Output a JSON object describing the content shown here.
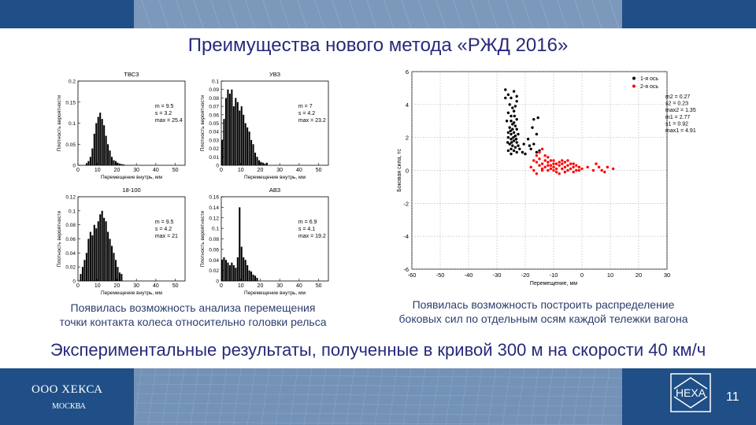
{
  "slide": {
    "title": "Преимущества нового метода «РЖД 2016»",
    "caption_left": [
      "Появилась возможность анализа перемещения",
      "точки контакта колеса относительно головки рельса"
    ],
    "caption_right": [
      "Появилась возможность построить распределение",
      "боковых сил по отдельным осям каждой тележки вагона"
    ],
    "conclusion": "Экспериментальные результаты, полученные в кривой 300 м на скорости 40 км/ч",
    "company": "ООО ХЕКСА",
    "city": "МОСКВА",
    "logo": "HEXA",
    "page_number": "11"
  },
  "colors": {
    "band": "#1f4f86",
    "title": "#27297a",
    "axle1": "#000000",
    "axle2": "#ff0000"
  },
  "chart_data": [
    {
      "type": "bar",
      "title": "ТВСЗ",
      "xlabel": "Перемещение внутрь, мм",
      "ylabel": "Плотность вероятности",
      "xlim": [
        0,
        55
      ],
      "ylim": [
        0,
        0.2
      ],
      "xticks": [
        0,
        10,
        20,
        30,
        40,
        50
      ],
      "yticks": [
        0,
        0.05,
        0.1,
        0.15,
        0.2
      ],
      "bin_width": 1,
      "x_start": 4,
      "values": [
        0.005,
        0.01,
        0.02,
        0.04,
        0.075,
        0.1,
        0.115,
        0.125,
        0.11,
        0.095,
        0.07,
        0.05,
        0.035,
        0.02,
        0.012,
        0.01,
        0.006,
        0.004,
        0.003,
        0.002
      ],
      "annotations": [
        "m = 9.5",
        "s = 3.2",
        "max = 25.4"
      ]
    },
    {
      "type": "bar",
      "title": "УВЗ",
      "xlabel": "Перемещение внутрь, мм",
      "ylabel": "Плотность вероятности",
      "xlim": [
        0,
        55
      ],
      "ylim": [
        0,
        0.1
      ],
      "xticks": [
        0,
        10,
        20,
        30,
        40,
        50
      ],
      "yticks": [
        0,
        0.01,
        0.02,
        0.03,
        0.04,
        0.05,
        0.06,
        0.07,
        0.08,
        0.09,
        0.1
      ],
      "bin_width": 1,
      "x_start": 0,
      "values": [
        0.03,
        0.055,
        0.08,
        0.09,
        0.085,
        0.09,
        0.07,
        0.08,
        0.075,
        0.065,
        0.07,
        0.06,
        0.05,
        0.045,
        0.04,
        0.03,
        0.025,
        0.015,
        0.01,
        0.006,
        0.004,
        0.003,
        0.002,
        0.003
      ],
      "annotations": [
        "m = 7",
        "s = 4.2",
        "max = 23.2"
      ]
    },
    {
      "type": "bar",
      "title": "18-100",
      "xlabel": "Перемещение внутрь, мм",
      "ylabel": "Плотность вероятности",
      "xlim": [
        0,
        55
      ],
      "ylim": [
        0,
        0.12
      ],
      "xticks": [
        0,
        10,
        20,
        30,
        40,
        50
      ],
      "yticks": [
        0,
        0.02,
        0.04,
        0.06,
        0.08,
        0.1,
        0.12
      ],
      "bin_width": 1,
      "x_start": 1,
      "values": [
        0.01,
        0.02,
        0.03,
        0.04,
        0.06,
        0.07,
        0.065,
        0.08,
        0.075,
        0.085,
        0.095,
        0.1,
        0.09,
        0.085,
        0.07,
        0.06,
        0.05,
        0.04,
        0.03,
        0.02,
        0.012,
        0.01
      ],
      "annotations": [
        "m = 9.5",
        "s = 4.2",
        "max = 21"
      ]
    },
    {
      "type": "bar",
      "title": "АВЗ",
      "xlabel": "Перемещение внутрь, мм",
      "ylabel": "Плотность вероятности",
      "xlim": [
        0,
        55
      ],
      "ylim": [
        0,
        0.16
      ],
      "xticks": [
        0,
        10,
        20,
        30,
        40,
        50
      ],
      "yticks": [
        0,
        0.02,
        0.04,
        0.06,
        0.08,
        0.1,
        0.12,
        0.14,
        0.16
      ],
      "bin_width": 1,
      "x_start": 0,
      "values": [
        0.04,
        0.045,
        0.04,
        0.035,
        0.03,
        0.035,
        0.03,
        0.025,
        0.045,
        0.14,
        0.065,
        0.045,
        0.04,
        0.03,
        0.02,
        0.018,
        0.012,
        0.01,
        0.006
      ],
      "annotations": [
        "m = 6.9",
        "s = 4.1",
        "max = 19.2"
      ]
    },
    {
      "type": "scatter",
      "xlabel": "Перемещение, мм",
      "ylabel": "Боковая сила, тс",
      "xlim": [
        -60,
        30
      ],
      "ylim": [
        -6,
        6
      ],
      "xticks": [
        -60,
        -50,
        -40,
        -30,
        -20,
        -10,
        0,
        10,
        20,
        30
      ],
      "yticks": [
        -6,
        -4,
        -2,
        0,
        2,
        4,
        6
      ],
      "grid": true,
      "legend": "top-right",
      "annotations": [
        "m2 = 0.27",
        "s2 = 0.23",
        "max2 = 1.35",
        "m1 = 2.77",
        "s1 = 0.92",
        "max1 = 4.91"
      ],
      "series": [
        {
          "name": "1-я ось",
          "color": "#000000",
          "points": [
            [
              -27,
              4.9
            ],
            [
              -26,
              4.6
            ],
            [
              -25,
              4.4
            ],
            [
              -24,
              4.8
            ],
            [
              -23,
              4.2
            ],
            [
              -25.5,
              4.0
            ],
            [
              -24.5,
              3.8
            ],
            [
              -23.5,
              3.9
            ],
            [
              -26,
              3.5
            ],
            [
              -25,
              3.3
            ],
            [
              -24,
              3.6
            ],
            [
              -23,
              3.1
            ],
            [
              -26.5,
              3.0
            ],
            [
              -25,
              3.0
            ],
            [
              -24,
              2.9
            ],
            [
              -23.5,
              2.7
            ],
            [
              -25.5,
              2.6
            ],
            [
              -24.5,
              2.5
            ],
            [
              -23,
              2.5
            ],
            [
              -26,
              2.3
            ],
            [
              -25,
              2.2
            ],
            [
              -24,
              2.3
            ],
            [
              -23.5,
              2.1
            ],
            [
              -22.5,
              2.2
            ],
            [
              -26,
              2.0
            ],
            [
              -25,
              1.9
            ],
            [
              -24,
              1.8
            ],
            [
              -23,
              1.7
            ],
            [
              -25.5,
              1.6
            ],
            [
              -24.5,
              1.5
            ],
            [
              -23.5,
              1.4
            ],
            [
              -22.5,
              1.5
            ],
            [
              -25,
              1.3
            ],
            [
              -24,
              1.2
            ],
            [
              -23,
              1.1
            ],
            [
              -26,
              1.2
            ],
            [
              -25,
              1.0
            ],
            [
              -24.5,
              2.8
            ],
            [
              -23.8,
              3.3
            ],
            [
              -25.2,
              2.4
            ],
            [
              -24.2,
              2.0
            ],
            [
              -26.2,
              1.7
            ],
            [
              -24.8,
              1.7
            ],
            [
              -23.2,
              1.9
            ],
            [
              -22,
              1.3
            ],
            [
              -21,
              1.1
            ],
            [
              -20,
              1.0
            ],
            [
              -18,
              1.3
            ],
            [
              -17,
              1.6
            ],
            [
              -16,
              1.1
            ],
            [
              -15,
              1.2
            ],
            [
              -19,
              1.9
            ],
            [
              -17.5,
              2.6
            ],
            [
              -16,
              2.2
            ],
            [
              -17,
              3.1
            ],
            [
              -15.5,
              3.2
            ],
            [
              -18.5,
              1.5
            ],
            [
              -20.5,
              1.6
            ],
            [
              -27,
              4.4
            ],
            [
              -23,
              4.5
            ]
          ]
        },
        {
          "name": "2-я ось",
          "color": "#ff0000",
          "points": [
            [
              -18,
              0.2
            ],
            [
              -16,
              0.5
            ],
            [
              -15,
              0.3
            ],
            [
              -14,
              0.4
            ],
            [
              -13,
              0.2
            ],
            [
              -12,
              0.5
            ],
            [
              -11,
              0.3
            ],
            [
              -10,
              0.2
            ],
            [
              -9,
              0.4
            ],
            [
              -8,
              0.3
            ],
            [
              -7,
              0.1
            ],
            [
              -6,
              0.2
            ],
            [
              -5,
              0.3
            ],
            [
              -4,
              0.1
            ],
            [
              -3,
              0.2
            ],
            [
              -2,
              0.0
            ],
            [
              -1,
              0.2
            ],
            [
              0,
              0.1
            ],
            [
              -17,
              0.6
            ],
            [
              -15,
              0.7
            ],
            [
              -14,
              0.1
            ],
            [
              -13,
              0.6
            ],
            [
              -12,
              0.0
            ],
            [
              -11,
              0.6
            ],
            [
              -10,
              0.0
            ],
            [
              -9,
              0.1
            ],
            [
              -8,
              0.5
            ],
            [
              -7,
              0.4
            ],
            [
              -6,
              -0.1
            ],
            [
              -5,
              0.0
            ],
            [
              -4,
              0.4
            ],
            [
              -3,
              -0.1
            ],
            [
              -16,
              0.9
            ],
            [
              -15,
              1.1
            ],
            [
              -14,
              1.3
            ],
            [
              -13,
              0.9
            ],
            [
              -12,
              0.8
            ],
            [
              -10,
              0.6
            ],
            [
              -9,
              -0.1
            ],
            [
              -8,
              -0.2
            ],
            [
              -6,
              0.5
            ],
            [
              -3,
              0.4
            ],
            [
              -2,
              0.3
            ],
            [
              2,
              0.2
            ],
            [
              4,
              0.0
            ],
            [
              5,
              0.4
            ],
            [
              6,
              0.2
            ],
            [
              7,
              0.0
            ],
            [
              8,
              -0.1
            ],
            [
              9,
              0.2
            ],
            [
              11,
              0.1
            ],
            [
              -17,
              0.0
            ],
            [
              -16,
              -0.2
            ],
            [
              -14,
              0.0
            ],
            [
              -12,
              0.3
            ],
            [
              -11,
              0.1
            ],
            [
              -10,
              0.4
            ],
            [
              -7,
              0.6
            ],
            [
              -5,
              0.6
            ],
            [
              -1,
              0.0
            ]
          ]
        }
      ]
    }
  ]
}
